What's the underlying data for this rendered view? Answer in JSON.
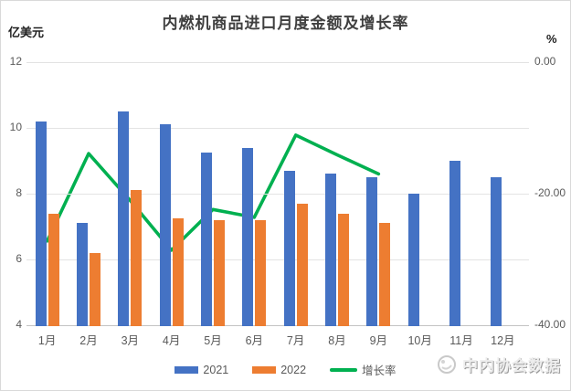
{
  "title": "内燃机商品进口月度金额及增长率",
  "left_axis": {
    "unit_label": "亿美元",
    "tick_labels": [
      "12",
      "10",
      "8",
      "6",
      "4"
    ],
    "tick_values": [
      12,
      10,
      8,
      6,
      4
    ]
  },
  "right_axis": {
    "unit_label": "%",
    "tick_labels": [
      "0.00",
      "-20.00",
      "-40.00"
    ],
    "tick_values": [
      0,
      -20,
      -40
    ]
  },
  "chart_data": {
    "type": "bar",
    "title": "内燃机商品进口月度金额及增长率",
    "categories": [
      "1月",
      "2月",
      "3月",
      "4月",
      "5月",
      "6月",
      "7月",
      "8月",
      "9月",
      "10月",
      "11月",
      "12月"
    ],
    "series": [
      {
        "name": "2021",
        "type": "bar",
        "axis": "left",
        "color": "#4472C4",
        "values": [
          10.2,
          7.1,
          10.5,
          10.1,
          9.25,
          9.4,
          8.7,
          8.6,
          8.5,
          8.0,
          9.0,
          8.5
        ]
      },
      {
        "name": "2022",
        "type": "bar",
        "axis": "left",
        "color": "#ED7D31",
        "values": [
          7.4,
          6.2,
          8.1,
          7.25,
          7.2,
          7.2,
          7.7,
          7.4,
          7.1,
          null,
          null,
          null
        ]
      },
      {
        "name": "增长率",
        "type": "line",
        "axis": "right",
        "color": "#00B050",
        "values": [
          -27.2,
          -13.9,
          -21.0,
          -28.6,
          -22.4,
          -23.6,
          -11.1,
          -14.1,
          -17.0,
          null,
          null,
          null
        ]
      }
    ],
    "ylabel_left": "亿美元",
    "ylabel_right": "%",
    "left_ylim": [
      4,
      12
    ],
    "right_ylim": [
      -40,
      0
    ],
    "grid": true,
    "legend_position": "bottom"
  },
  "legend": [
    {
      "label": "2021",
      "color": "#4472C4",
      "shape": "rect"
    },
    {
      "label": "2022",
      "color": "#ED7D31",
      "shape": "rect"
    },
    {
      "label": "增长率",
      "color": "#00B050",
      "shape": "line"
    }
  ],
  "watermark": {
    "text": "中内协会数据"
  }
}
